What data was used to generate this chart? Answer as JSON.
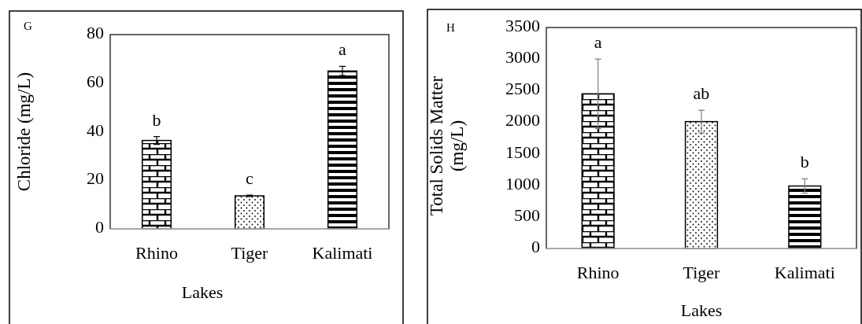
{
  "chart_data": [
    {
      "type": "bar",
      "xlabel": "Lakes",
      "ylabel": "Chloride (mg/L)",
      "categories": [
        "Rhino",
        "Tiger",
        "Kalimati"
      ],
      "values": [
        36.4,
        13.6,
        65
      ],
      "errors": [
        1.6,
        0.3,
        1.9
      ],
      "colors": [
        "#000000",
        "#000000",
        "#000000"
      ],
      "ylim": [
        0,
        80
      ],
      "yticks": [
        0,
        20,
        40,
        60,
        80
      ],
      "grid": false,
      "annotations": [
        "G",
        "b",
        "c",
        "a"
      ]
    },
    {
      "type": "bar",
      "xlabel": "Lakes",
      "ylabel": "Total Solids Matter (mg/L)",
      "categories": [
        "Rhino",
        "Tiger",
        "Kalimati"
      ],
      "values": [
        2450,
        2010,
        990
      ],
      "errors": [
        550,
        180,
        115
      ],
      "colors": [
        "#000000",
        "#000000",
        "#000000"
      ],
      "ylim": [
        0,
        3500
      ],
      "yticks": [
        0,
        500,
        1000,
        1500,
        2000,
        2500,
        3000,
        3500
      ],
      "grid": false,
      "annotations": [
        "H",
        "a",
        "ab",
        "b"
      ]
    }
  ]
}
